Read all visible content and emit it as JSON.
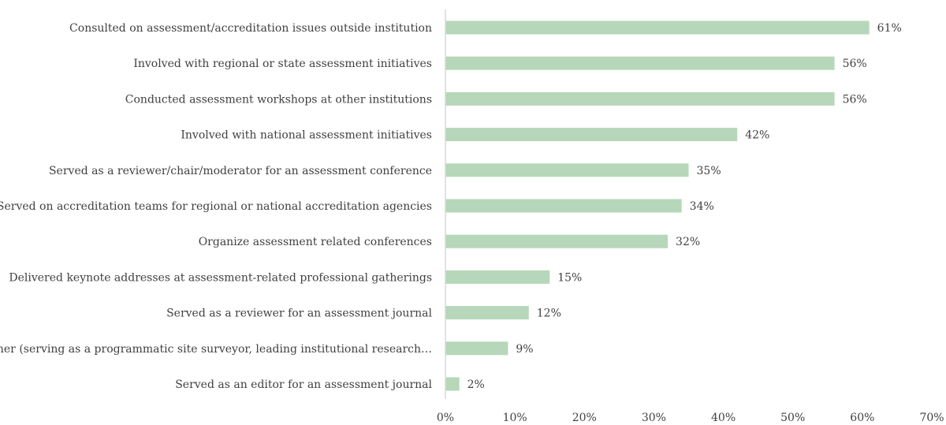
{
  "chart_data": {
    "type": "bar",
    "orientation": "horizontal",
    "title": "",
    "xlabel": "",
    "ylabel": "",
    "categories": [
      "Consulted on assessment/accreditation issues outside institution",
      "Involved with regional or state assessment initiatives",
      "Conducted assessment workshops at other institutions",
      "Involved with national assessment initiatives",
      "Served as a reviewer/chair/moderator for an assessment conference",
      "Served on accreditation teams for regional or national accreditation agencies",
      "Organize assessment related conferences",
      "Delivered keynote addresses at assessment-related professional gatherings",
      "Served as a reviewer for an assessment journal",
      "Other (serving as a programmatic site surveyor, leading institutional research…",
      "Served as an editor for an assessment  journal"
    ],
    "values": [
      61,
      56,
      56,
      42,
      35,
      34,
      32,
      15,
      12,
      9,
      2
    ],
    "data_labels": [
      "61%",
      "56%",
      "56%",
      "42%",
      "35%",
      "34%",
      "32%",
      "15%",
      "12%",
      "9%",
      "2%"
    ],
    "xlim": [
      0,
      70
    ],
    "x_ticks": [
      "0%",
      "10%",
      "20%",
      "30%",
      "40%",
      "50%",
      "60%",
      "70%"
    ],
    "x_tick_values": [
      0,
      10,
      20,
      30,
      40,
      50,
      60,
      70
    ],
    "grid": false,
    "legend": "none",
    "bar_color": "#b6d7b9",
    "axis_color": "#d9d9d9",
    "text_color": "#404040"
  }
}
